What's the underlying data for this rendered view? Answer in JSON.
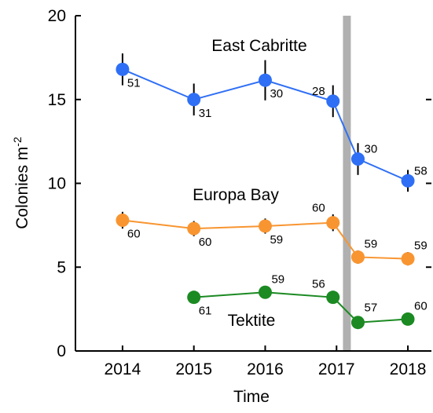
{
  "chart_data": {
    "type": "line",
    "xlabel": "Time",
    "ylabel": "Colonies m",
    "ylabel_superscript": "-2",
    "xlim": [
      2013.34,
      2018.33
    ],
    "ylim": [
      0,
      20
    ],
    "xticks": [
      2014,
      2015,
      2016,
      2017,
      2018
    ],
    "yticks": [
      0,
      5,
      10,
      15,
      20
    ],
    "shaded_band_x": [
      2017.09,
      2017.2
    ],
    "shaded_band_color": "#b0b0b0",
    "series": [
      {
        "name": "East Cabritte",
        "color": "#2f6ff5",
        "x": [
          2014.0,
          2015.0,
          2016.0,
          2016.95,
          2017.3,
          2018.0
        ],
        "values": [
          16.8,
          15.0,
          16.15,
          14.9,
          11.45,
          10.15
        ],
        "errors": [
          0.95,
          0.95,
          1.2,
          0.95,
          0.95,
          0.65
        ],
        "sample_sizes": [
          51,
          31,
          30,
          28,
          30,
          58
        ]
      },
      {
        "name": "Europa Bay",
        "color": "#f89531",
        "x": [
          2014.0,
          2015.0,
          2016.0,
          2016.95,
          2017.3,
          2018.0
        ],
        "values": [
          7.8,
          7.3,
          7.45,
          7.65,
          5.6,
          5.5
        ],
        "errors": [
          0.5,
          0.45,
          0.45,
          0.5,
          0.4,
          0.4
        ],
        "sample_sizes": [
          60,
          60,
          59,
          60,
          59,
          59
        ]
      },
      {
        "name": "Tektite",
        "color": "#1b8a22",
        "x": [
          2015.0,
          2016.0,
          2016.95,
          2017.3,
          2018.0
        ],
        "values": [
          3.2,
          3.5,
          3.2,
          1.7,
          1.9
        ],
        "errors": [
          0.3,
          0.35,
          0.3,
          0.3,
          0.3
        ],
        "sample_sizes": [
          61,
          59,
          56,
          57,
          60
        ]
      }
    ]
  }
}
